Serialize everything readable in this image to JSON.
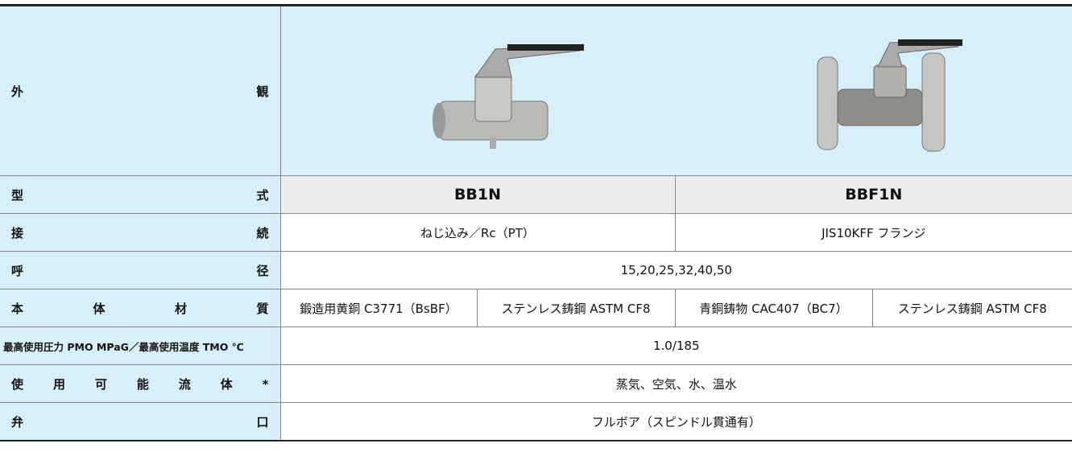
{
  "appearance_label": "外観",
  "rows": [
    {
      "label": "型式",
      "cells": [
        "BB1N",
        "BBF1N"
      ]
    },
    {
      "label": "接続",
      "cells": [
        "ねじ込み／Rc（PT）",
        "JIS10KFF フランジ"
      ]
    },
    {
      "label": "呼径",
      "cells": [
        "15,20,25,32,40,50"
      ]
    },
    {
      "label": "本体材質",
      "cells": [
        "鍛造用黄銅 C3771（BsBF）",
        "ステンレス鋳鋼 ASTM CF8",
        "青銅鋳物 CAC407（BC7）",
        "ステンレス鋳鋼 ASTM CF8"
      ]
    },
    {
      "label": "最高使用圧力 PMO MPaG／最高使用温度 TMO ℃",
      "cells": [
        "1.0/185"
      ]
    },
    {
      "label": "使用可能流体*",
      "cells": [
        "蒸気、空気、水、温水"
      ]
    },
    {
      "label": "弁口",
      "cells": [
        "フルボア（スピンドル貫通有）"
      ]
    }
  ]
}
